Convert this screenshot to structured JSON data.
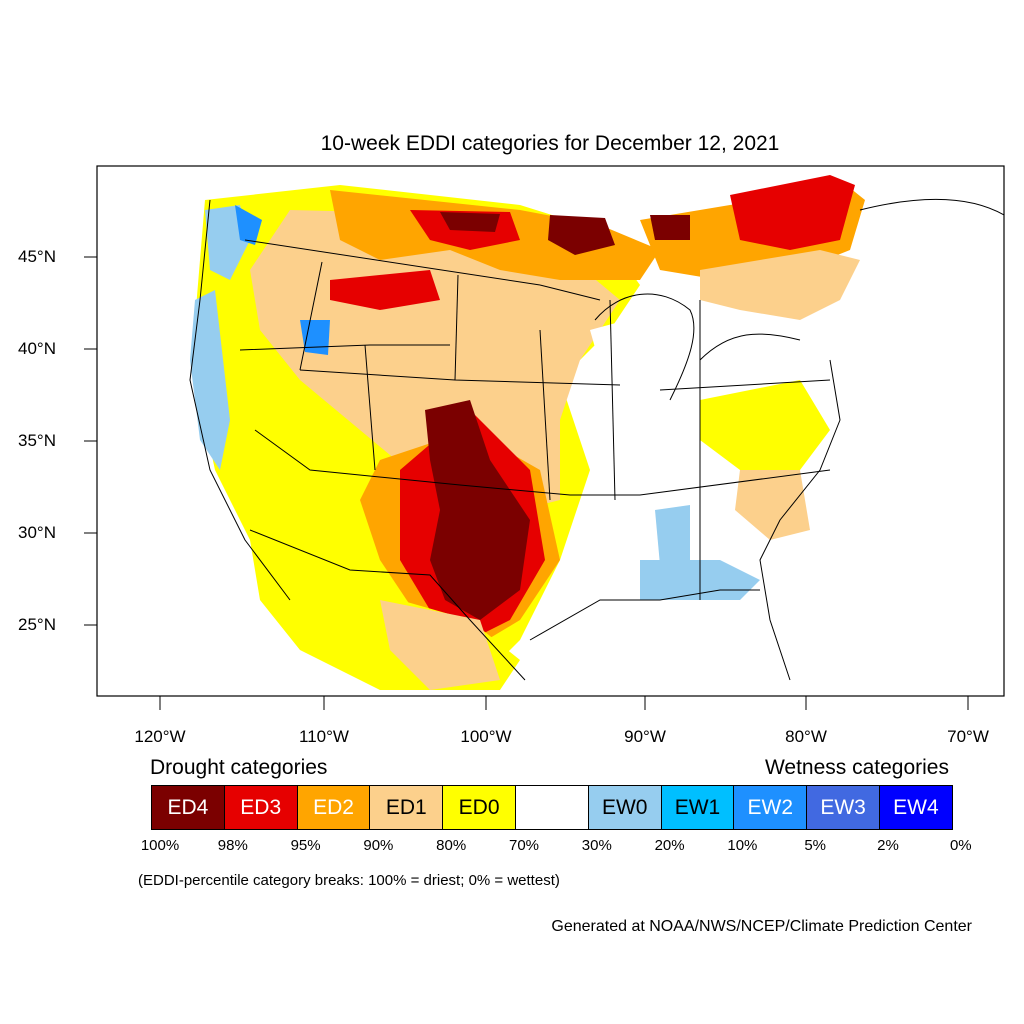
{
  "title": "10-week EDDI categories for December 12, 2021",
  "lat_labels": [
    "45°N",
    "40°N",
    "35°N",
    "30°N",
    "25°N"
  ],
  "lon_labels": [
    "120°W",
    "110°W",
    "100°W",
    "90°W",
    "80°W",
    "70°W"
  ],
  "drought_heading": "Drought categories",
  "wetness_heading": "Wetness categories",
  "categories": [
    {
      "label": "ED4",
      "color": "#7b0000",
      "text_color": "#ffffff"
    },
    {
      "label": "ED3",
      "color": "#e60000",
      "text_color": "#ffffff"
    },
    {
      "label": "ED2",
      "color": "#ffa500",
      "text_color": "#ffffff"
    },
    {
      "label": "ED1",
      "color": "#fcd08c",
      "text_color": "#000000"
    },
    {
      "label": "ED0",
      "color": "#ffff00",
      "text_color": "#000000"
    },
    {
      "label": "",
      "color": "#ffffff",
      "text_color": "#000000"
    },
    {
      "label": "EW0",
      "color": "#96cdef",
      "text_color": "#000000"
    },
    {
      "label": "EW1",
      "color": "#00bfff",
      "text_color": "#000000"
    },
    {
      "label": "EW2",
      "color": "#1e90ff",
      "text_color": "#ffffff"
    },
    {
      "label": "EW3",
      "color": "#4169e1",
      "text_color": "#ffffff"
    },
    {
      "label": "EW4",
      "color": "#0000ff",
      "text_color": "#ffffff"
    }
  ],
  "percentiles": [
    "100%",
    "98%",
    "95%",
    "90%",
    "80%",
    "70%",
    "30%",
    "20%",
    "10%",
    "5%",
    "2%",
    "0%"
  ],
  "note": "(EDDI-percentile category breaks: 100% = driest; 0% = wettest)",
  "credit": "Generated at NOAA/NWS/NCEP/Climate Prediction Center"
}
